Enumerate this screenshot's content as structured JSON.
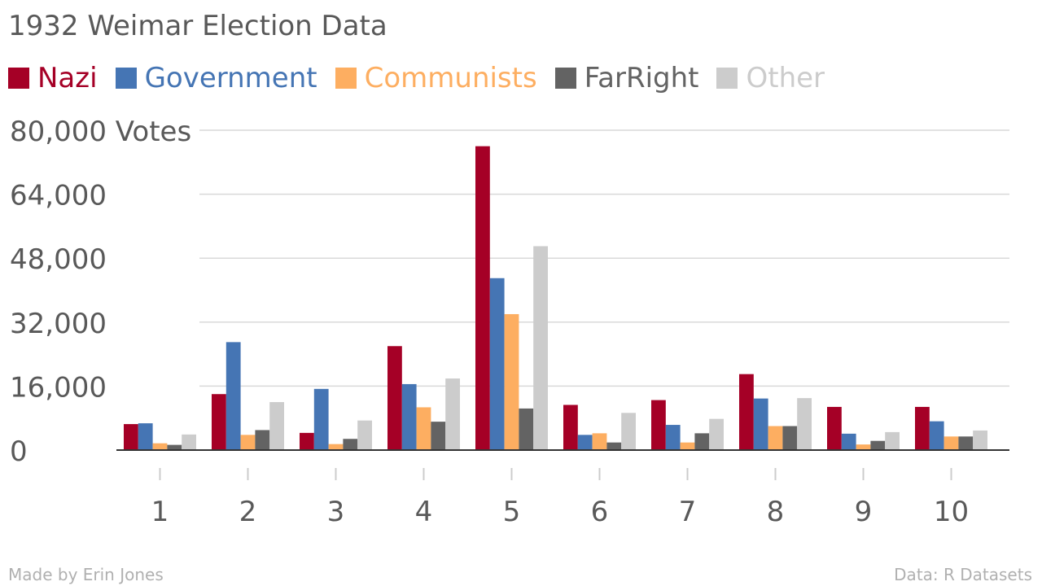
{
  "title": "1932 Weimar Election Data",
  "footer": {
    "credit": "Made by Erin Jones",
    "source": "Data: R Datasets"
  },
  "chart_data": {
    "type": "bar",
    "categories": [
      "1",
      "2",
      "3",
      "4",
      "5",
      "6",
      "7",
      "8",
      "9",
      "10"
    ],
    "series": [
      {
        "name": "Nazi",
        "color": "#a50026",
        "values": [
          6500,
          14000,
          4300,
          26000,
          76000,
          11300,
          12500,
          19000,
          10800,
          10800
        ]
      },
      {
        "name": "Government",
        "color": "#4575b4",
        "values": [
          6700,
          27000,
          15300,
          16500,
          43000,
          3800,
          6300,
          12900,
          4100,
          7200
        ]
      },
      {
        "name": "Communists",
        "color": "#fdae61",
        "values": [
          1700,
          3800,
          1500,
          10700,
          34000,
          4200,
          1900,
          6000,
          1400,
          3400
        ]
      },
      {
        "name": "FarRight",
        "color": "#636363",
        "values": [
          1300,
          5000,
          2800,
          7100,
          10400,
          1900,
          4200,
          6000,
          2300,
          3400
        ]
      },
      {
        "name": "Other",
        "color": "#cccccc",
        "values": [
          3900,
          12000,
          7400,
          17900,
          51000,
          9300,
          7800,
          13000,
          4500,
          4900
        ]
      }
    ],
    "yticks": [
      "0",
      "16,000",
      "32,000",
      "48,000",
      "64,000",
      "80,000 Votes"
    ],
    "ytick_values": [
      0,
      16000,
      32000,
      48000,
      64000,
      80000
    ],
    "ylim": [
      0,
      80000
    ],
    "grid": true,
    "legend": "top-left"
  }
}
